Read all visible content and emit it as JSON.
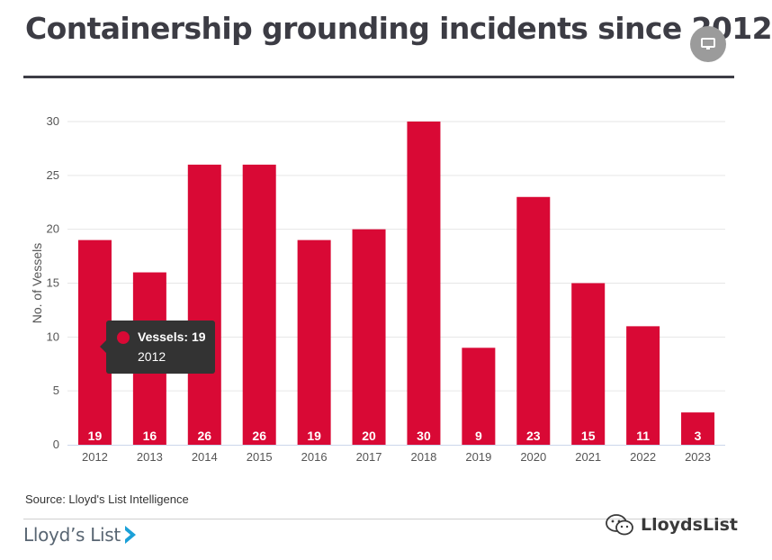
{
  "header": {
    "title": "Containership grounding incidents since 2012"
  },
  "toolbar": {
    "present_icon": "monitor-icon"
  },
  "tooltip": {
    "series_label": "Vessels: 19",
    "category": "2012"
  },
  "footer": {
    "source": "Source: Lloyd's List Intelligence",
    "logo_text": "Lloyd’s List",
    "watermark_text": "LloydsList",
    "watermark_icon": "wechat-icon"
  },
  "colors": {
    "bar": "#d90935",
    "title": "#3c3c44",
    "grid": "#e6e6e6",
    "tooltip_bg": "#333333",
    "logo_accent": "#1ba0d8"
  },
  "chart_data": {
    "type": "bar",
    "title": "",
    "xlabel": "",
    "ylabel": "No. of Vessels",
    "categories": [
      "2012",
      "2013",
      "2014",
      "2015",
      "2016",
      "2017",
      "2018",
      "2019",
      "2020",
      "2021",
      "2022",
      "2023"
    ],
    "series": [
      {
        "values": [
          19,
          16,
          26,
          26,
          19,
          20,
          30,
          9,
          23,
          15,
          11,
          3
        ]
      }
    ],
    "ylim": [
      0,
      30
    ],
    "yticks": [
      0,
      5,
      10,
      15,
      20,
      25,
      30
    ],
    "grid": true,
    "data_labels": true
  }
}
